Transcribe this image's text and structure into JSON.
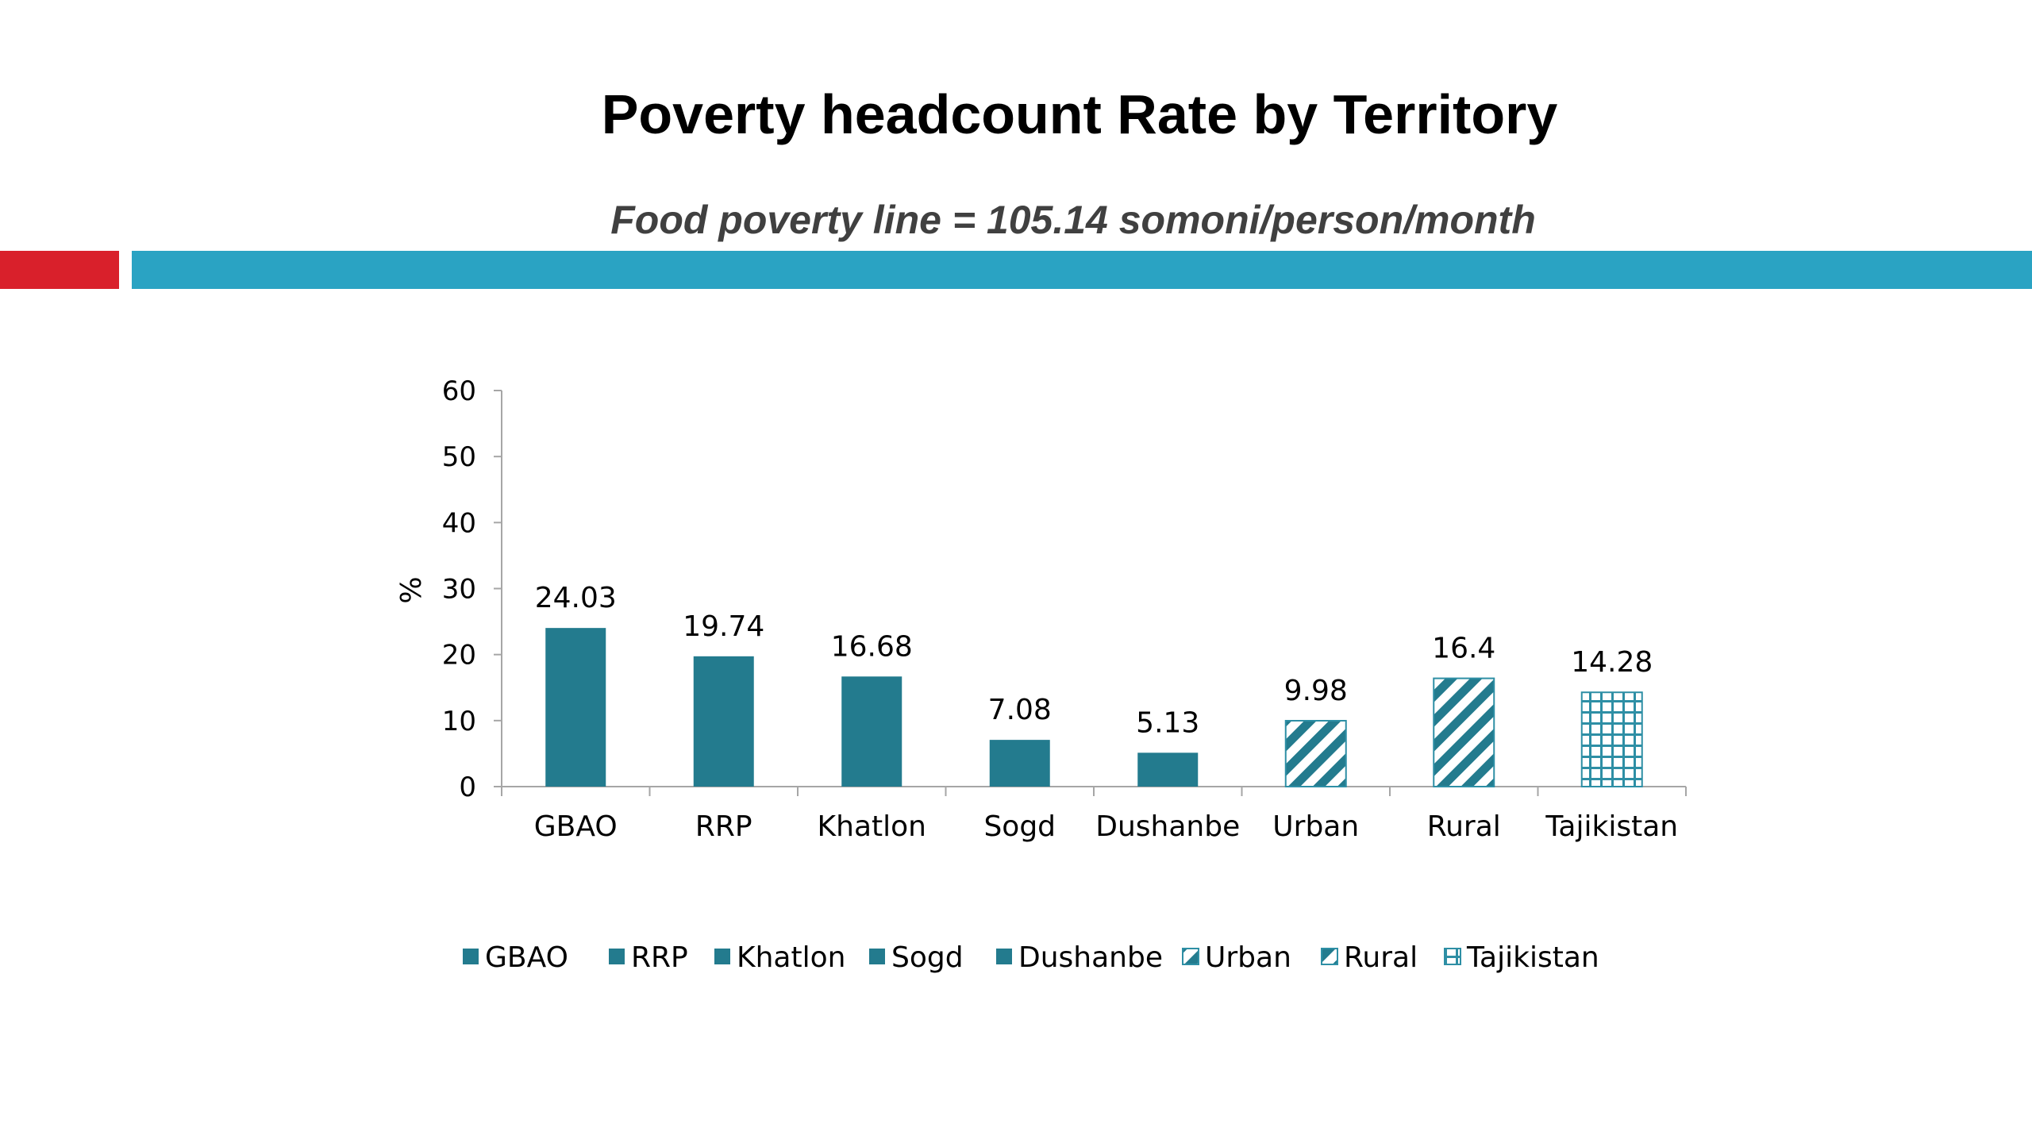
{
  "slide": {
    "title": "Poverty headcount Rate by Territory",
    "subtitle": "Food poverty line = 105.14 somoni/person/month"
  },
  "colors": {
    "accent_red": "#D9202B",
    "accent_blue": "#2AA3C3",
    "bar_fill": "#237B8E",
    "bar_light": "#2E8FA5",
    "axis": "#A6A6A6"
  },
  "chart_data": {
    "type": "bar",
    "title": "",
    "xlabel": "",
    "ylabel": "%",
    "ylim": [
      0,
      60
    ],
    "yticks": [
      0,
      10,
      20,
      30,
      40,
      50,
      60
    ],
    "categories": [
      "GBAO",
      "RRP",
      "Khatlon",
      "Sogd",
      "Dushanbe",
      "Urban",
      "Rural",
      "Tajikistan"
    ],
    "values": [
      24.03,
      19.74,
      16.68,
      7.08,
      5.13,
      9.98,
      16.4,
      14.28
    ],
    "data_labels": [
      "24.03",
      "19.74",
      "16.68",
      "7.08",
      "5.13",
      "9.98",
      "16.4",
      "14.28"
    ],
    "patterns": [
      "solid",
      "solid",
      "solid",
      "solid",
      "solid",
      "diagonal",
      "diagonal",
      "grid"
    ],
    "grid": false,
    "legend": {
      "position": "bottom",
      "entries": [
        "GBAO",
        "RRP",
        "Khatlon",
        "Sogd",
        "Dushanbe",
        "Urban",
        "Rural",
        "Tajikistan"
      ]
    }
  }
}
